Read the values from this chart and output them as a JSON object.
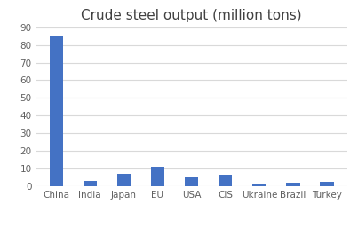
{
  "title": "Crude steel output (million tons)",
  "categories": [
    "China",
    "India",
    "Japan",
    "EU",
    "USA",
    "CIS",
    "Ukraine",
    "Brazil",
    "Turkey"
  ],
  "values": [
    85,
    3,
    7,
    11,
    5,
    6.5,
    1.5,
    2,
    2.5
  ],
  "bar_color": "#4472C4",
  "ylim": [
    0,
    90
  ],
  "yticks": [
    0,
    10,
    20,
    30,
    40,
    50,
    60,
    70,
    80,
    90
  ],
  "background_color": "#ffffff",
  "title_fontsize": 11,
  "tick_fontsize": 7.5,
  "grid_color": "#d9d9d9",
  "bar_width": 0.4
}
